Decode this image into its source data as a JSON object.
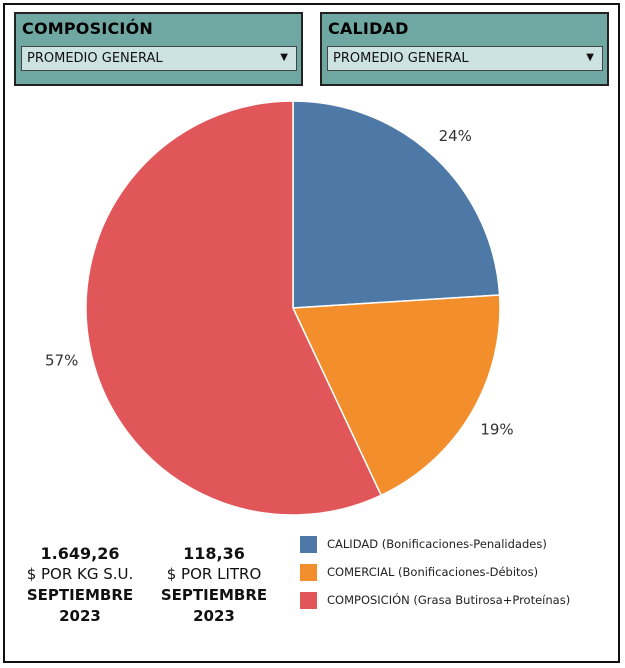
{
  "filters": [
    {
      "title": "COMPOSICIÓN",
      "selected": "PROMEDIO GENERAL"
    },
    {
      "title": "CALIDAD",
      "selected": "PROMEDIO GENERAL"
    }
  ],
  "chart_data": {
    "type": "pie",
    "title": "",
    "slices": [
      {
        "name": "CALIDAD (Bonificaciones-Penalidades)",
        "value": 24,
        "label": "24%",
        "color": "#4e79a7"
      },
      {
        "name": "COMERCIAL (Bonificaciones-Débitos)",
        "value": 19,
        "label": "19%",
        "color": "#f28e2b"
      },
      {
        "name": "COMPOSICIÓN (Grasa Butirosa+Proteínas)",
        "value": 57,
        "label": "57%",
        "color": "#e15759"
      }
    ],
    "legend": "bottom-right"
  },
  "kpis": [
    {
      "value": "1.649,26",
      "unit": "$ POR KG S.U.",
      "period_month": "SEPTIEMBRE",
      "period_year": "2023"
    },
    {
      "value": "118,36",
      "unit": "$ POR LITRO",
      "period_month": "SEPTIEMBRE",
      "period_year": "2023"
    }
  ]
}
